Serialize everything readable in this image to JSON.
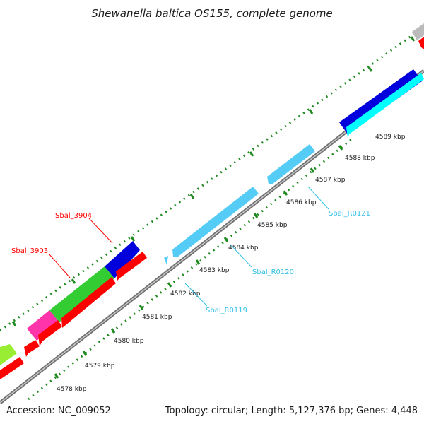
{
  "header": {
    "title": "Shewanella baltica OS155, complete genome"
  },
  "footer": {
    "accession": "Accession: NC_009052",
    "topology": "Topology: circular; Length: 5,127,376 bp; Genes: 4,448"
  },
  "tick_labels": [
    "4578 kbp",
    "4579 kbp",
    "4580 kbp",
    "4581 kbp",
    "4582 kbp",
    "4583 kbp",
    "4584 kbp",
    "4585 kbp",
    "4586 kbp",
    "4587 kbp",
    "4588 kbp",
    "4589 kbp"
  ],
  "gene_labels": [
    {
      "name": "Sbal_3904",
      "color": "#ff0000"
    },
    {
      "name": "Sbal_3903",
      "color": "#ff0000"
    },
    {
      "name": "Sbal_R0121",
      "color": "#33c0e6"
    },
    {
      "name": "Sbal_R0120",
      "color": "#33c0e6"
    },
    {
      "name": "Sbal_R0119",
      "color": "#33c0e6"
    }
  ],
  "colors": {
    "backbone": "#8c8c8c",
    "tick_green": "#1f8a1f",
    "gene_red": "#ff0000",
    "gene_blue": "#0000dd",
    "gene_green": "#33cc33",
    "gene_magenta": "#ff33aa",
    "gene_lime": "#99ee33",
    "gene_cyan": "#00ffff",
    "rna_lightblue": "#55ccf5",
    "gene_grey": "#bbbbbb"
  }
}
